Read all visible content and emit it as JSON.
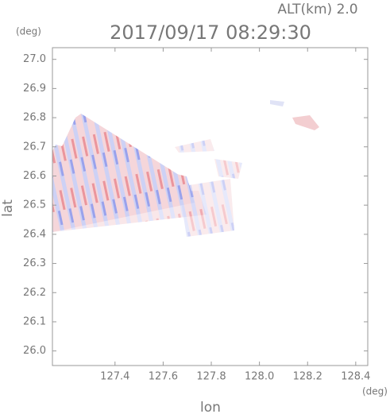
{
  "chart_data": {
    "type": "radar-map",
    "title": "2017/09/17 08:29:30",
    "subtitle": "ALT(km) 2.0",
    "x_label": "lon",
    "y_label": "lat",
    "x_unit": "(deg)",
    "y_unit": "(deg)",
    "xlim": [
      127.14,
      128.45
    ],
    "ylim": [
      25.95,
      27.04
    ],
    "xticks": [
      127.4,
      127.6,
      127.8,
      {
        "value": 128.0,
        "label": "128.0"
      },
      128.2,
      128.4
    ],
    "yticks": [
      {
        "value": 27.0,
        "label": "27.0"
      },
      26.9,
      26.8,
      26.7,
      26.6,
      26.5,
      26.4,
      26.3,
      26.2,
      26.1,
      {
        "value": 26.0,
        "label": "26.0"
      }
    ],
    "grid": false
  }
}
